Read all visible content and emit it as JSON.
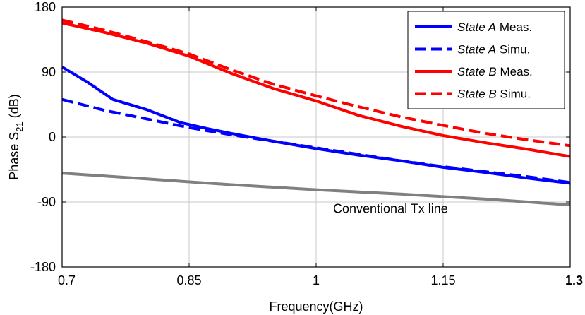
{
  "chart_data": {
    "type": "line",
    "title": "",
    "xlabel": "Frequency(GHz)",
    "ylabel_main": "Phase S",
    "ylabel_sub": "21",
    "ylabel_unit": " (dB)",
    "xlim": [
      0.7,
      1.3
    ],
    "ylim": [
      -180,
      180
    ],
    "x_ticks": [
      0.7,
      0.85,
      1.0,
      1.15,
      1.3
    ],
    "x_tick_labels": [
      "0.7",
      "0.85",
      "1",
      "1.15",
      "1.3"
    ],
    "y_ticks": [
      -180,
      -90,
      0,
      90,
      180
    ],
    "y_tick_labels": [
      "-180",
      "-90",
      "0",
      "90",
      "180"
    ],
    "grid": true,
    "legend_position": "top-right",
    "series": [
      {
        "name_italic": "State A",
        "name_rest": " Meas.",
        "color": "#0000ff",
        "dash": "solid",
        "x": [
          0.7,
          0.73,
          0.76,
          0.8,
          0.84,
          0.87,
          0.9,
          0.95,
          1.0,
          1.05,
          1.1,
          1.15,
          1.2,
          1.25,
          1.3
        ],
        "y": [
          97,
          76,
          52,
          38,
          20,
          12,
          5,
          -6,
          -16,
          -25,
          -33,
          -42,
          -49,
          -57,
          -64
        ]
      },
      {
        "name_italic": "State A",
        "name_rest": " Simu.",
        "color": "#0000ff",
        "dash": "dashed",
        "x": [
          0.7,
          0.75,
          0.8,
          0.85,
          0.9,
          0.95,
          1.0,
          1.05,
          1.1,
          1.15,
          1.2,
          1.25,
          1.3
        ],
        "y": [
          52,
          37,
          25,
          13,
          3,
          -6,
          -15,
          -24,
          -33,
          -41,
          -48,
          -55,
          -63
        ]
      },
      {
        "name_italic": "State B",
        "name_rest": " Meas.",
        "color": "#ff0000",
        "dash": "solid",
        "x": [
          0.7,
          0.75,
          0.8,
          0.85,
          0.9,
          0.95,
          1.0,
          1.05,
          1.1,
          1.15,
          1.2,
          1.25,
          1.3
        ],
        "y": [
          158,
          145,
          130,
          112,
          88,
          67,
          50,
          30,
          15,
          2,
          -8,
          -17,
          -27
        ]
      },
      {
        "name_italic": "State B",
        "name_rest": " Simu.",
        "color": "#ff0000",
        "dash": "dashed",
        "x": [
          0.7,
          0.75,
          0.8,
          0.85,
          0.9,
          0.95,
          1.0,
          1.05,
          1.1,
          1.15,
          1.2,
          1.25,
          1.3
        ],
        "y": [
          162,
          148,
          132,
          115,
          93,
          73,
          57,
          42,
          28,
          16,
          5,
          -4,
          -12
        ]
      },
      {
        "name_italic": "",
        "name_rest": "",
        "color": "#808080",
        "dash": "solid",
        "x": [
          0.7,
          0.8,
          0.9,
          1.0,
          1.1,
          1.2,
          1.3
        ],
        "y": [
          -50,
          -58,
          -66,
          -73,
          -79,
          -86,
          -94
        ]
      }
    ],
    "annotations": [
      {
        "text": "Conventional Tx line",
        "x": 1.02,
        "y": -105
      }
    ]
  }
}
